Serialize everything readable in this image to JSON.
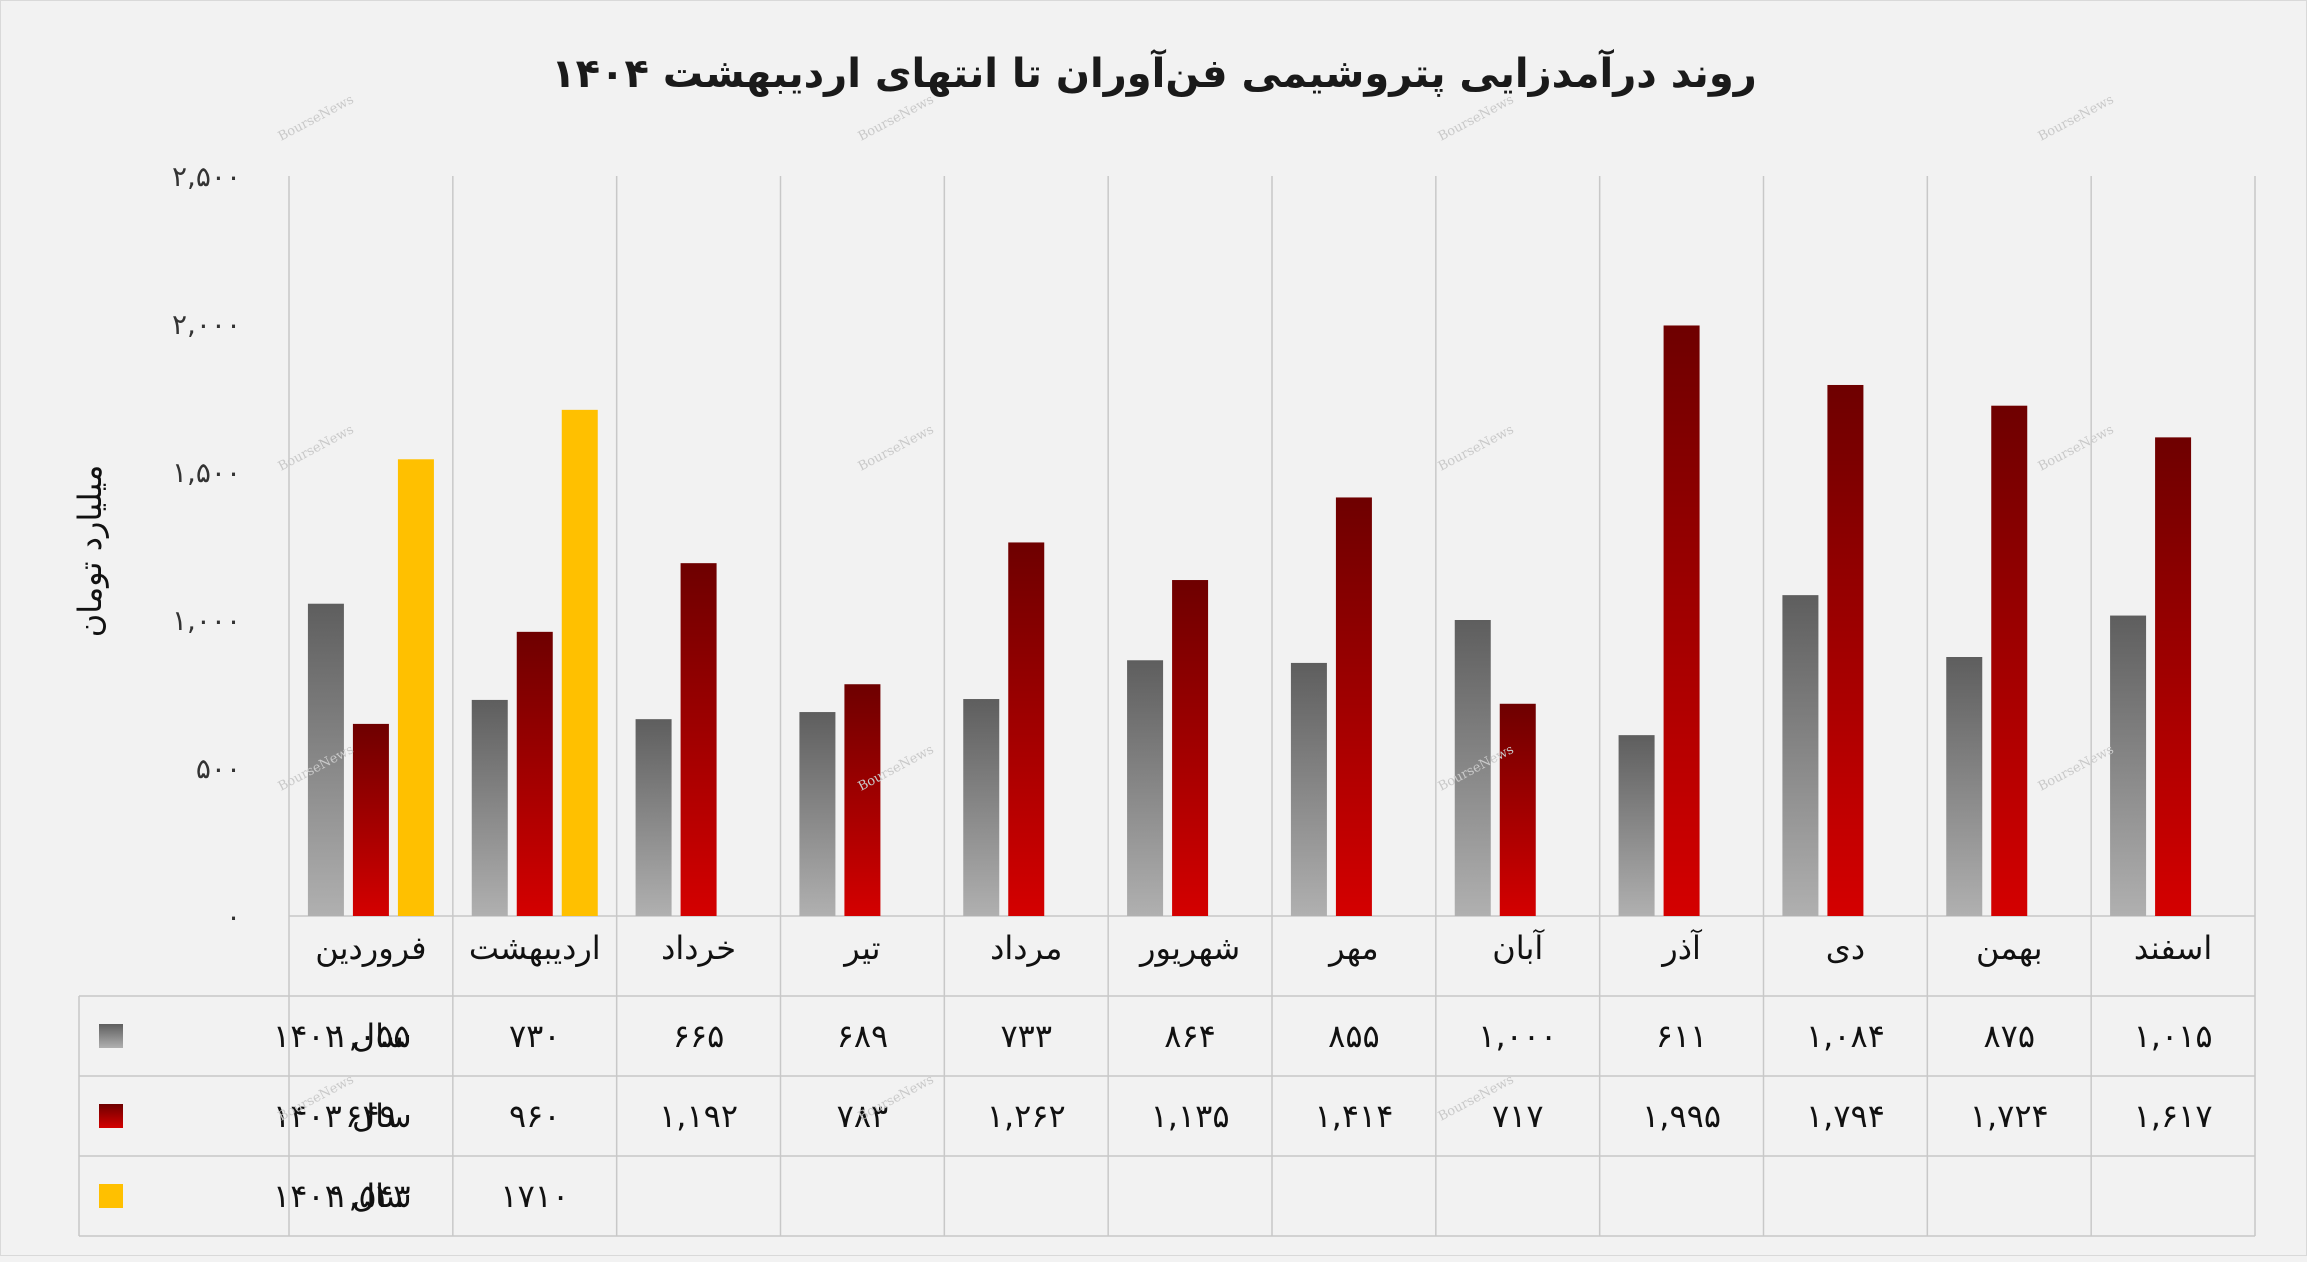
{
  "chart_data": {
    "type": "bar",
    "title": "روند درآمدزایی پتروشیمی فن‌آوران تا انتهای اردیبهشت ۱۴۰۴",
    "ylabel": "میلیارد تومان",
    "xlabel": "",
    "ylim": [
      0,
      2500
    ],
    "yticks": [
      0,
      500,
      1000,
      1500,
      2000,
      2500
    ],
    "ytick_labels": [
      "۰",
      "۵۰۰",
      "۱,۰۰۰",
      "۱,۵۰۰",
      "۲,۰۰۰",
      "۲,۵۰۰"
    ],
    "categories": [
      "فروردین",
      "اردیبهشت",
      "خرداد",
      "تیر",
      "مرداد",
      "شهریور",
      "مهر",
      "آبان",
      "آذر",
      "دی",
      "بهمن",
      "اسفند"
    ],
    "series": [
      {
        "name": "سال ۱۴۰۲",
        "color": "#808080",
        "values": [
          1055,
          730,
          665,
          689,
          733,
          864,
          855,
          1000,
          611,
          1084,
          875,
          1015
        ],
        "labels": [
          "۱,۰۵۵",
          "۷۳۰",
          "۶۶۵",
          "۶۸۹",
          "۷۳۳",
          "۸۶۴",
          "۸۵۵",
          "۱,۰۰۰",
          "۶۱۱",
          "۱,۰۸۴",
          "۸۷۵",
          "۱,۰۱۵"
        ]
      },
      {
        "name": "سال ۱۴۰۳",
        "color": "#a00000",
        "values": [
          649,
          960,
          1192,
          783,
          1262,
          1135,
          1414,
          717,
          1995,
          1794,
          1724,
          1617
        ],
        "labels": [
          "۶۴۹",
          "۹۶۰",
          "۱,۱۹۲",
          "۷۸۳",
          "۱,۲۶۲",
          "۱,۱۳۵",
          "۱,۴۱۴",
          "۷۱۷",
          "۱,۹۹۵",
          "۱,۷۹۴",
          "۱,۷۲۴",
          "۱,۶۱۷"
        ]
      },
      {
        "name": "سال ۱۴۰۴",
        "color": "#ffc000",
        "values": [
          1543,
          1710,
          null,
          null,
          null,
          null,
          null,
          null,
          null,
          null,
          null,
          null
        ],
        "labels": [
          "۱,۵۴۳",
          "۱۷۱۰",
          "",
          "",
          "",
          "",
          "",
          "",
          "",
          "",
          "",
          ""
        ]
      }
    ],
    "grid": "vertical",
    "legend": "data-table"
  },
  "watermark": "BourseNews"
}
